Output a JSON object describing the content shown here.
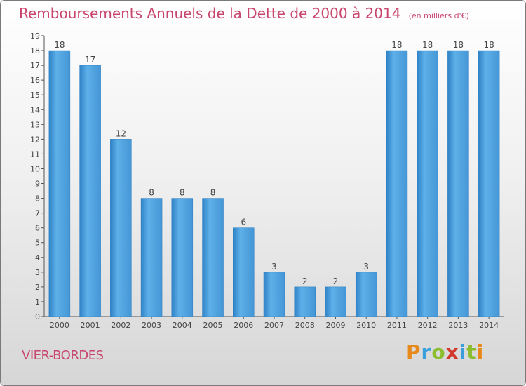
{
  "title": "Remboursements Annuels de la Dette de 2000 à 2014",
  "unit_note": "(en milliers d'€)",
  "commune": "VIER-BORDES",
  "brand": "Proxiti",
  "colors": {
    "title": "#c8466e",
    "bar_light": "#5aaee6",
    "bar_dark": "#2a7dc0",
    "axis": "#555555"
  },
  "chart_data": {
    "type": "bar",
    "title": "Remboursements Annuels de la Dette de 2000 à 2014",
    "categories": [
      "2000",
      "2001",
      "2002",
      "2003",
      "2004",
      "2005",
      "2006",
      "2007",
      "2008",
      "2009",
      "2010",
      "2011",
      "2012",
      "2013",
      "2014"
    ],
    "values": [
      18,
      17,
      12,
      8,
      8,
      8,
      6,
      3,
      2,
      2,
      3,
      18,
      18,
      18,
      18
    ],
    "ylim": [
      0,
      19
    ],
    "yticks": [
      0,
      1,
      2,
      3,
      4,
      5,
      6,
      7,
      8,
      9,
      10,
      11,
      12,
      13,
      14,
      15,
      16,
      17,
      18,
      19
    ],
    "grid": false,
    "data_labels": true
  }
}
